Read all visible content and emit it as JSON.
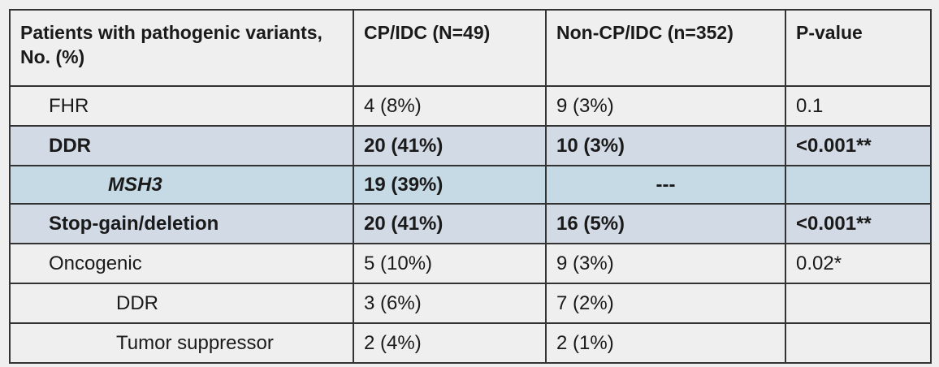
{
  "table": {
    "headers": [
      "Patients with pathogenic variants, No. (%)",
      "CP/IDC (N=49)",
      "Non-CP/IDC (n=352)",
      "P-value"
    ],
    "rows": [
      {
        "label": "FHR",
        "cp_idc": "4 (8%)",
        "non_cp_idc": "9 (3%)",
        "p_value": "0.1"
      },
      {
        "label": "DDR",
        "cp_idc": "20 (41%)",
        "non_cp_idc": "10 (3%)",
        "p_value": "<0.001**"
      },
      {
        "label": "MSH3",
        "cp_idc": "19 (39%)",
        "non_cp_idc": "---",
        "p_value": ""
      },
      {
        "label": "Stop-gain/deletion",
        "cp_idc": "20 (41%)",
        "non_cp_idc": "16 (5%)",
        "p_value": "<0.001**"
      },
      {
        "label": "Oncogenic",
        "cp_idc": "5 (10%)",
        "non_cp_idc": "9 (3%)",
        "p_value": "0.02*"
      },
      {
        "label": "DDR",
        "cp_idc": "3 (6%)",
        "non_cp_idc": "7 (2%)",
        "p_value": ""
      },
      {
        "label": "Tumor suppressor",
        "cp_idc": "2 (4%)",
        "non_cp_idc": "2 (1%)",
        "p_value": ""
      }
    ],
    "colors": {
      "page_background": "#efefef",
      "highlight_row": "#d2dae6",
      "msh3_row": "#c5dae5",
      "border": "#333333"
    }
  }
}
